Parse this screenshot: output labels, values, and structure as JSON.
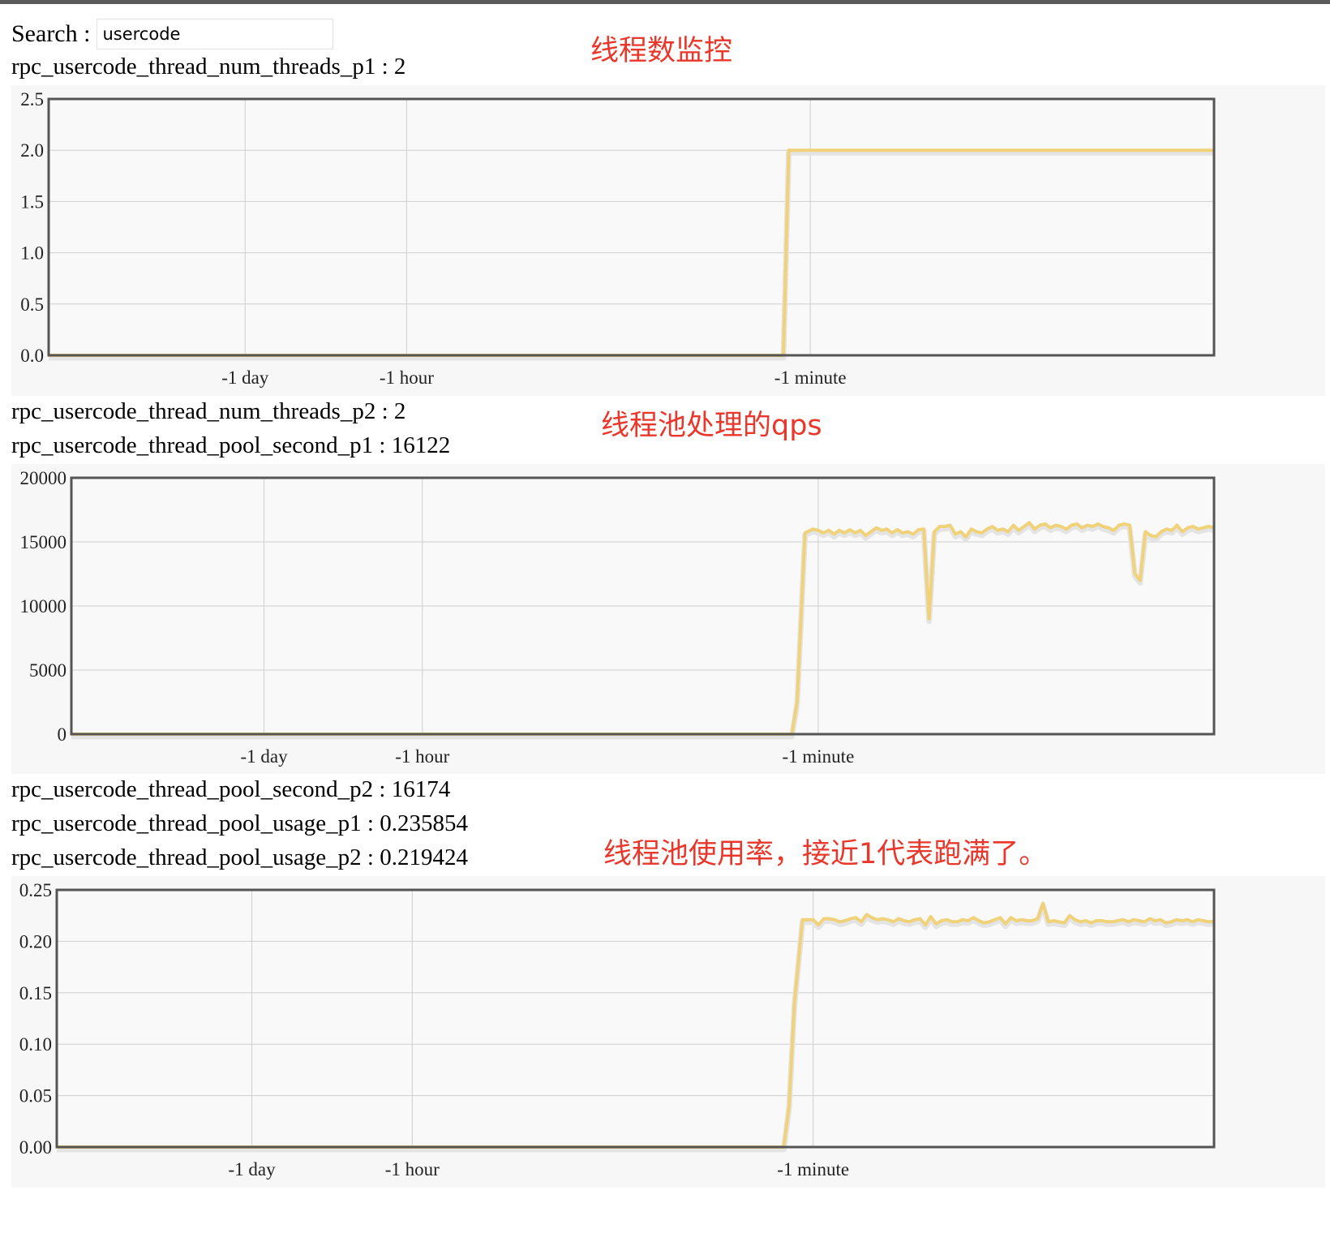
{
  "search": {
    "label": "Search :",
    "value": "usercode"
  },
  "metrics": {
    "num_threads_p1": {
      "name": "rpc_usercode_thread_num_threads_p1",
      "value": "2"
    },
    "num_threads_p2": {
      "name": "rpc_usercode_thread_num_threads_p2",
      "value": "2"
    },
    "pool_second_p1": {
      "name": "rpc_usercode_thread_pool_second_p1",
      "value": "16122"
    },
    "pool_second_p2": {
      "name": "rpc_usercode_thread_pool_second_p2",
      "value": "16174"
    },
    "pool_usage_p1": {
      "name": "rpc_usercode_thread_pool_usage_p1",
      "value": "0.235854"
    },
    "pool_usage_p2": {
      "name": "rpc_usercode_thread_pool_usage_p2",
      "value": "0.219424"
    }
  },
  "annotations": {
    "threads": "线程数监控",
    "qps": "线程池处理的qps",
    "usage": "线程池使用率，接近1代表跑满了。"
  },
  "colors": {
    "line": "#f0d27a",
    "grid": "#cfcfcf",
    "frame": "#555555",
    "annotation": "#e9372b"
  },
  "chart_data": [
    {
      "type": "line",
      "title": "",
      "xlabel": "",
      "ylabel": "",
      "x_ticks": [
        "-1 day",
        "-1 hour",
        "-1 minute"
      ],
      "x_tick_pos": [
        60,
        120,
        270
      ],
      "xlim": [
        -13,
        420
      ],
      "ylim": [
        0,
        2.5
      ],
      "y_ticks": [
        "0.0",
        "0.5",
        "1.0",
        "1.5",
        "2.0",
        "2.5"
      ],
      "grid": true,
      "series": [
        {
          "x": [
            -13,
            260,
            262,
            420
          ],
          "values": [
            0,
            0,
            2,
            2
          ]
        }
      ]
    },
    {
      "type": "line",
      "title": "",
      "xlabel": "",
      "ylabel": "",
      "x_ticks": [
        "-1 day",
        "-1 hour",
        "-1 minute"
      ],
      "x_tick_pos": [
        60,
        120,
        270
      ],
      "xlim": [
        -13,
        420
      ],
      "ylim": [
        0,
        20000
      ],
      "y_ticks": [
        "0",
        "5000",
        "10000",
        "15000",
        "20000"
      ],
      "grid": true,
      "series": [
        {
          "x": [
            -13,
            260,
            262,
            265,
            268,
            270,
            272,
            274,
            276,
            278,
            280,
            282,
            284,
            286,
            288,
            290,
            292,
            294,
            296,
            298,
            300,
            302,
            304,
            306,
            308,
            310,
            312,
            314,
            316,
            318,
            320,
            322,
            324,
            326,
            328,
            330,
            332,
            334,
            336,
            338,
            340,
            342,
            344,
            346,
            348,
            350,
            352,
            354,
            356,
            358,
            360,
            362,
            364,
            366,
            368,
            370,
            372,
            374,
            376,
            378,
            380,
            382,
            384,
            386,
            388,
            390,
            392,
            394,
            396,
            398,
            400,
            402,
            404,
            406,
            408,
            410,
            412,
            414,
            416,
            418,
            420
          ],
          "values": [
            0,
            0,
            2500,
            15700,
            16000,
            15900,
            15700,
            15900,
            15600,
            15900,
            15700,
            15950,
            15700,
            15900,
            15500,
            15800,
            16100,
            15900,
            16000,
            15700,
            15950,
            15700,
            15800,
            15600,
            15950,
            16000,
            9000,
            15800,
            16200,
            16200,
            16300,
            15600,
            15800,
            15400,
            16000,
            15800,
            15700,
            16000,
            16200,
            15900,
            16000,
            15800,
            16300,
            15900,
            16200,
            16500,
            16000,
            16300,
            16400,
            16100,
            16300,
            16200,
            16000,
            16300,
            16400,
            16100,
            16300,
            16200,
            16400,
            16200,
            16100,
            15900,
            16300,
            16400,
            16300,
            12500,
            12000,
            15800,
            15500,
            15400,
            15800,
            16000,
            15900,
            16300,
            15800,
            16100,
            16200,
            16000,
            16100,
            16200,
            16122
          ]
        }
      ]
    },
    {
      "type": "line",
      "title": "",
      "xlabel": "",
      "ylabel": "",
      "x_ticks": [
        "-1 day",
        "-1 hour",
        "-1 minute"
      ],
      "x_tick_pos": [
        60,
        120,
        270
      ],
      "xlim": [
        -13,
        420
      ],
      "ylim": [
        0,
        0.25
      ],
      "y_ticks": [
        "0.00",
        "0.05",
        "0.10",
        "0.15",
        "0.20",
        "0.25"
      ],
      "grid": true,
      "series": [
        {
          "x": [
            -13,
            259,
            261,
            263,
            266,
            268,
            270,
            272,
            274,
            276,
            278,
            280,
            282,
            284,
            286,
            288,
            290,
            292,
            294,
            296,
            298,
            300,
            302,
            304,
            306,
            308,
            310,
            312,
            314,
            316,
            318,
            320,
            322,
            324,
            326,
            328,
            330,
            332,
            334,
            336,
            338,
            340,
            342,
            344,
            346,
            348,
            350,
            352,
            354,
            356,
            358,
            360,
            362,
            364,
            366,
            368,
            370,
            372,
            374,
            376,
            378,
            380,
            382,
            384,
            386,
            388,
            390,
            392,
            394,
            396,
            398,
            400,
            402,
            404,
            406,
            408,
            410,
            412,
            414,
            416,
            418,
            420
          ],
          "values": [
            0,
            0,
            0.04,
            0.14,
            0.221,
            0.221,
            0.221,
            0.216,
            0.222,
            0.222,
            0.221,
            0.219,
            0.22,
            0.222,
            0.223,
            0.219,
            0.226,
            0.223,
            0.221,
            0.222,
            0.221,
            0.219,
            0.222,
            0.22,
            0.219,
            0.221,
            0.222,
            0.216,
            0.224,
            0.217,
            0.22,
            0.221,
            0.219,
            0.219,
            0.221,
            0.22,
            0.223,
            0.22,
            0.218,
            0.219,
            0.221,
            0.223,
            0.217,
            0.223,
            0.22,
            0.221,
            0.22,
            0.22,
            0.222,
            0.237,
            0.219,
            0.22,
            0.219,
            0.218,
            0.225,
            0.221,
            0.219,
            0.22,
            0.218,
            0.22,
            0.22,
            0.219,
            0.219,
            0.22,
            0.221,
            0.219,
            0.221,
            0.22,
            0.219,
            0.222,
            0.22,
            0.221,
            0.218,
            0.219,
            0.221,
            0.22,
            0.221,
            0.219,
            0.221,
            0.22,
            0.219,
            0.219424
          ]
        }
      ]
    }
  ]
}
